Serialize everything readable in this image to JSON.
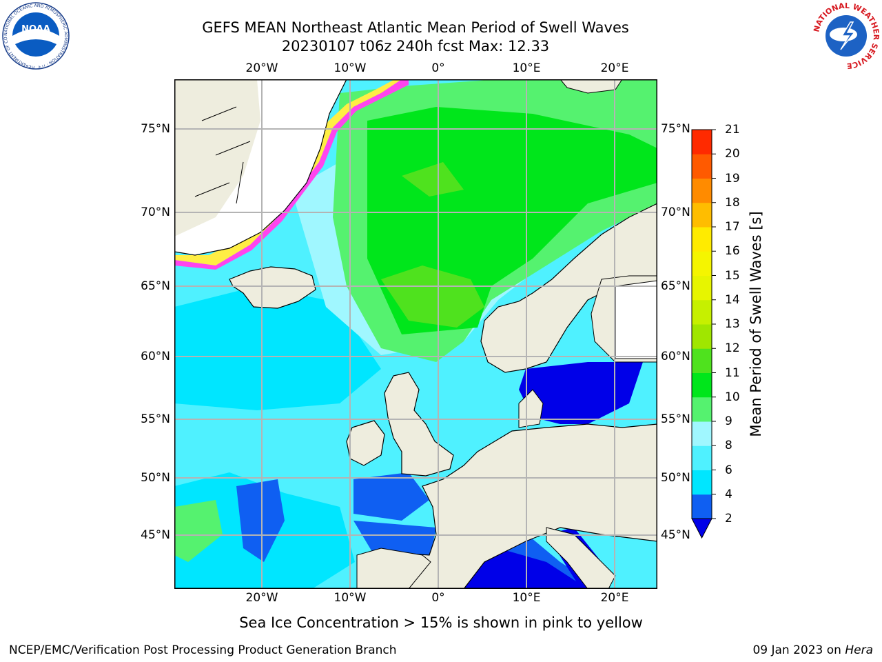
{
  "header": {
    "title_line1": "GEFS MEAN Northeast Atlantic Mean Period of Swell Waves",
    "title_line2": "20230107 t06z 240h fcst   Max: 12.33"
  },
  "logos": {
    "noaa_text": "NOAA",
    "noaa_ring_text": "NATIONAL OCEANIC AND ATMOSPHERIC ADMINISTRATION · U.S. DEPARTMENT OF COMMERCE",
    "nws_ring_text": "NATIONAL WEATHER SERVICE"
  },
  "axes": {
    "lon_labels": [
      "20°W",
      "10°W",
      "0°",
      "10°E",
      "20°E"
    ],
    "lat_labels": [
      "75°N",
      "70°N",
      "65°N",
      "60°N",
      "55°N",
      "50°N",
      "45°N"
    ]
  },
  "colorbar": {
    "title": "Mean Period of Swell Waves [s]",
    "ticks": [
      "2",
      "4",
      "6",
      "8",
      "9",
      "10",
      "11",
      "12",
      "13",
      "14",
      "15",
      "16",
      "17",
      "18",
      "19",
      "20",
      "21"
    ],
    "colors": [
      "#0f5ff2",
      "#00e6ff",
      "#4ff1ff",
      "#a0f7ff",
      "#55f26f",
      "#00e61b",
      "#4fe21e",
      "#a0e600",
      "#c6f000",
      "#e7f500",
      "#f5f500",
      "#ffeb00",
      "#ffbd00",
      "#ff8b00",
      "#ff5a00",
      "#ff2a00",
      "#ff0000"
    ],
    "extend_color": "#0000e8"
  },
  "palette": {
    "land": "#eeedde",
    "ice_free_white": "#ffffff",
    "sea_ice_pink": "#ff44ee",
    "sea_ice_yellow": "#ffee44",
    "grid": "#b4b4b4"
  },
  "footer": {
    "note": "Sea Ice Concentration > 15% is shown in pink to yellow",
    "left": "NCEP/EMC/Verification Post Processing Product Generation Branch",
    "date": "09 Jan 2023 on",
    "host": "Hera"
  }
}
